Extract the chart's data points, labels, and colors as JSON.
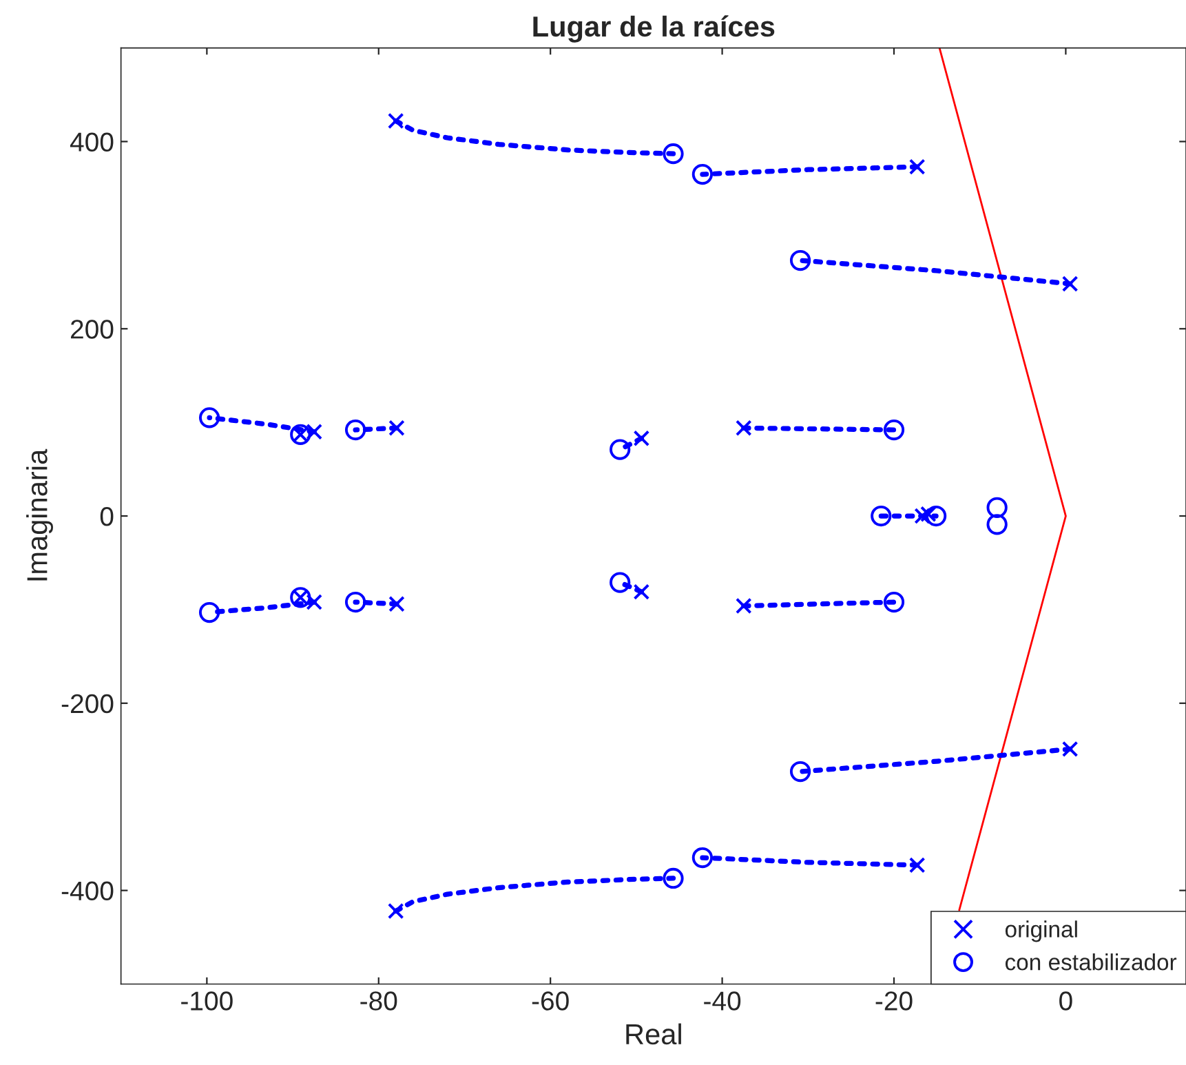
{
  "chart_data": {
    "type": "scatter",
    "title": "Lugar de la raíces",
    "xlabel": "Real",
    "ylabel": "Imaginaria",
    "xlim": [
      -110,
      14
    ],
    "ylim": [
      -500,
      500
    ],
    "xticks": [
      -100,
      -80,
      -60,
      -40,
      -20,
      0
    ],
    "yticks": [
      -400,
      -200,
      0,
      200,
      400
    ],
    "grid": false,
    "legend": "bottom right",
    "series": [
      {
        "type": "line",
        "color": "#ff0000",
        "line_style": "solid",
        "marker": "none",
        "x": [
          -14.7,
          0,
          -12.4
        ],
        "values": [
          500,
          0,
          -421
        ]
      },
      {
        "type": "line",
        "color": "#0000ff",
        "line_style": "dotted",
        "marker": "none",
        "x": [
          -78,
          -76,
          -72,
          -66,
          -58,
          -50,
          -45.7
        ],
        "values": [
          422,
          412,
          404,
          397,
          391,
          388,
          387
        ]
      },
      {
        "type": "line",
        "color": "#0000ff",
        "line_style": "dotted",
        "marker": "none",
        "x": [
          -78,
          -76,
          -72,
          -66,
          -58,
          -50,
          -45.7
        ],
        "values": [
          -422,
          -412,
          -404,
          -397,
          -391,
          -388,
          -387
        ]
      },
      {
        "type": "line",
        "color": "#0000ff",
        "line_style": "dotted",
        "marker": "none",
        "x": [
          -17.3,
          -30,
          -42.3
        ],
        "values": [
          373,
          370,
          365
        ]
      },
      {
        "type": "line",
        "color": "#0000ff",
        "line_style": "dotted",
        "marker": "none",
        "x": [
          -17.3,
          -30,
          -42.3
        ],
        "values": [
          -373,
          -370,
          -365
        ]
      },
      {
        "type": "line",
        "color": "#0000ff",
        "line_style": "dotted",
        "marker": "none",
        "x": [
          0.5,
          -15,
          -30.9
        ],
        "values": [
          248,
          262,
          273
        ]
      },
      {
        "type": "line",
        "color": "#0000ff",
        "line_style": "dotted",
        "marker": "none",
        "x": [
          0.5,
          -15,
          -30.9
        ],
        "values": [
          -249,
          -262,
          -273
        ]
      },
      {
        "type": "line",
        "color": "#0000ff",
        "line_style": "dotted",
        "marker": "none",
        "x": [
          -87.5,
          -93,
          -99.7
        ],
        "values": [
          90,
          98,
          105
        ]
      },
      {
        "type": "line",
        "color": "#0000ff",
        "line_style": "dotted",
        "marker": "none",
        "x": [
          -87.5,
          -93,
          -99.7
        ],
        "values": [
          -92,
          -98,
          -103
        ]
      },
      {
        "type": "line",
        "color": "#0000ff",
        "line_style": "dotted",
        "marker": "none",
        "x": [
          -77.9,
          -82.7
        ],
        "values": [
          94,
          92
        ]
      },
      {
        "type": "line",
        "color": "#0000ff",
        "line_style": "dotted",
        "marker": "none",
        "x": [
          -77.9,
          -82.7
        ],
        "values": [
          -94,
          -92
        ]
      },
      {
        "type": "line",
        "color": "#0000ff",
        "line_style": "dotted",
        "marker": "none",
        "x": [
          -49.4,
          -51.9
        ],
        "values": [
          83,
          71
        ]
      },
      {
        "type": "line",
        "color": "#0000ff",
        "line_style": "dotted",
        "marker": "none",
        "x": [
          -49.4,
          -51.9
        ],
        "values": [
          -81,
          -71
        ]
      },
      {
        "type": "line",
        "color": "#0000ff",
        "line_style": "dotted",
        "marker": "none",
        "x": [
          -37.5,
          -20
        ],
        "values": [
          94,
          92
        ]
      },
      {
        "type": "line",
        "color": "#0000ff",
        "line_style": "dotted",
        "marker": "none",
        "x": [
          -37.5,
          -20
        ],
        "values": [
          -96,
          -92
        ]
      },
      {
        "type": "line",
        "color": "#0000ff",
        "line_style": "dotted",
        "marker": "none",
        "x": [
          -21.5,
          -15.1
        ],
        "values": [
          0,
          0
        ]
      },
      {
        "name": "original",
        "color": "#0000ff",
        "marker": "cross",
        "x": [
          -78,
          -17.3,
          0.5,
          -87.5,
          -89.1,
          -77.9,
          -49.4,
          -37.5,
          -16.7,
          -16,
          -78,
          -17.3,
          0.5,
          -87.5,
          -89.1,
          -77.9,
          -49.4,
          -37.5
        ],
        "values": [
          422,
          373,
          248,
          90,
          87,
          94,
          83,
          94,
          0,
          2,
          -422,
          -373,
          -249,
          -92,
          -87,
          -94,
          -81,
          -96
        ]
      },
      {
        "name": "con estabilizador",
        "color": "#0000ff",
        "marker": "circle",
        "x": [
          -45.7,
          -42.3,
          -30.9,
          -99.7,
          -89.1,
          -82.7,
          -51.9,
          -20,
          -21.5,
          -15.1,
          -8,
          -8,
          -45.7,
          -42.3,
          -30.9,
          -99.7,
          -89.1,
          -82.7,
          -51.9,
          -20
        ],
        "values": [
          387,
          365,
          273,
          105,
          87,
          92,
          71,
          92,
          0,
          0,
          9,
          -9,
          -387,
          -365,
          -273,
          -103,
          -87,
          -92,
          -71,
          -92
        ]
      }
    ]
  }
}
